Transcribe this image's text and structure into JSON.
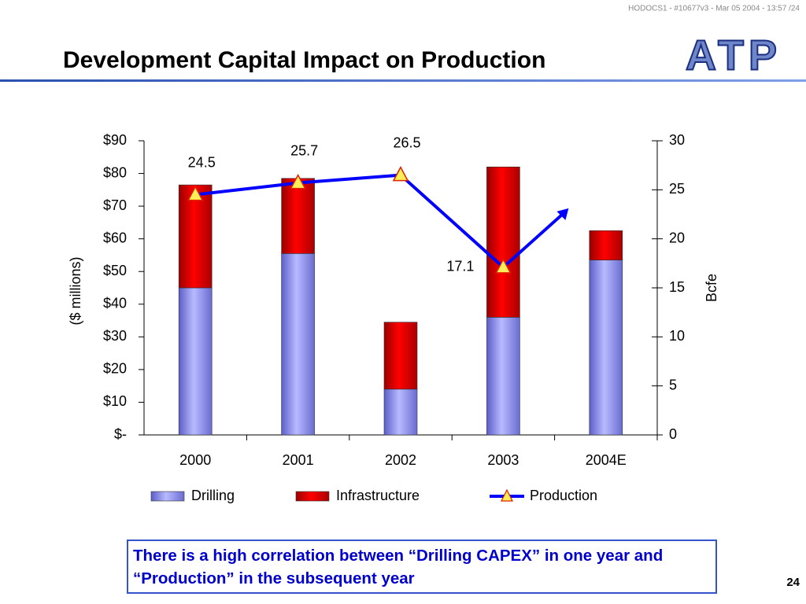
{
  "header": "HODOCS1 - #10677v3 - Mar 05 2004 - 13:57 /24",
  "title": "Development Capital Impact on Production",
  "logo": "ATP",
  "chart_data": {
    "type": "bar",
    "categories": [
      "2000",
      "2001",
      "2002",
      "2003",
      "2004E"
    ],
    "series": [
      {
        "name": "Drilling",
        "color": "#9a9cf0",
        "values": [
          45,
          55.5,
          14,
          36,
          53.5
        ]
      },
      {
        "name": "Infrastructure",
        "color": "#ff0000",
        "values": [
          31.5,
          23,
          20.5,
          46,
          9
        ]
      },
      {
        "name": "Production",
        "type": "line",
        "axis": "y2",
        "color": "#0000ff",
        "marker_color": "#ffee55",
        "values": [
          24.5,
          25.7,
          26.5,
          17.1,
          null
        ]
      }
    ],
    "stacked": true,
    "ylabel": "($ millions)",
    "y2label": "Bcfe",
    "ylim": [
      0,
      90
    ],
    "yticks": [
      {
        "value": 0,
        "label": "$-"
      },
      {
        "value": 10,
        "label": "$10"
      },
      {
        "value": 20,
        "label": "$20"
      },
      {
        "value": 30,
        "label": "$30"
      },
      {
        "value": 40,
        "label": "$40"
      },
      {
        "value": 50,
        "label": "$50"
      },
      {
        "value": 60,
        "label": "$60"
      },
      {
        "value": 70,
        "label": "$70"
      },
      {
        "value": 80,
        "label": "$80"
      },
      {
        "value": 90,
        "label": "$90"
      }
    ],
    "y2lim": [
      0,
      30
    ],
    "y2ticks": [
      0,
      5,
      10,
      15,
      20,
      25,
      30
    ],
    "legend": "bottom"
  },
  "note": "There is a high correlation between “Drilling CAPEX” in one year and “Production” in the subsequent year",
  "page_number": "24"
}
